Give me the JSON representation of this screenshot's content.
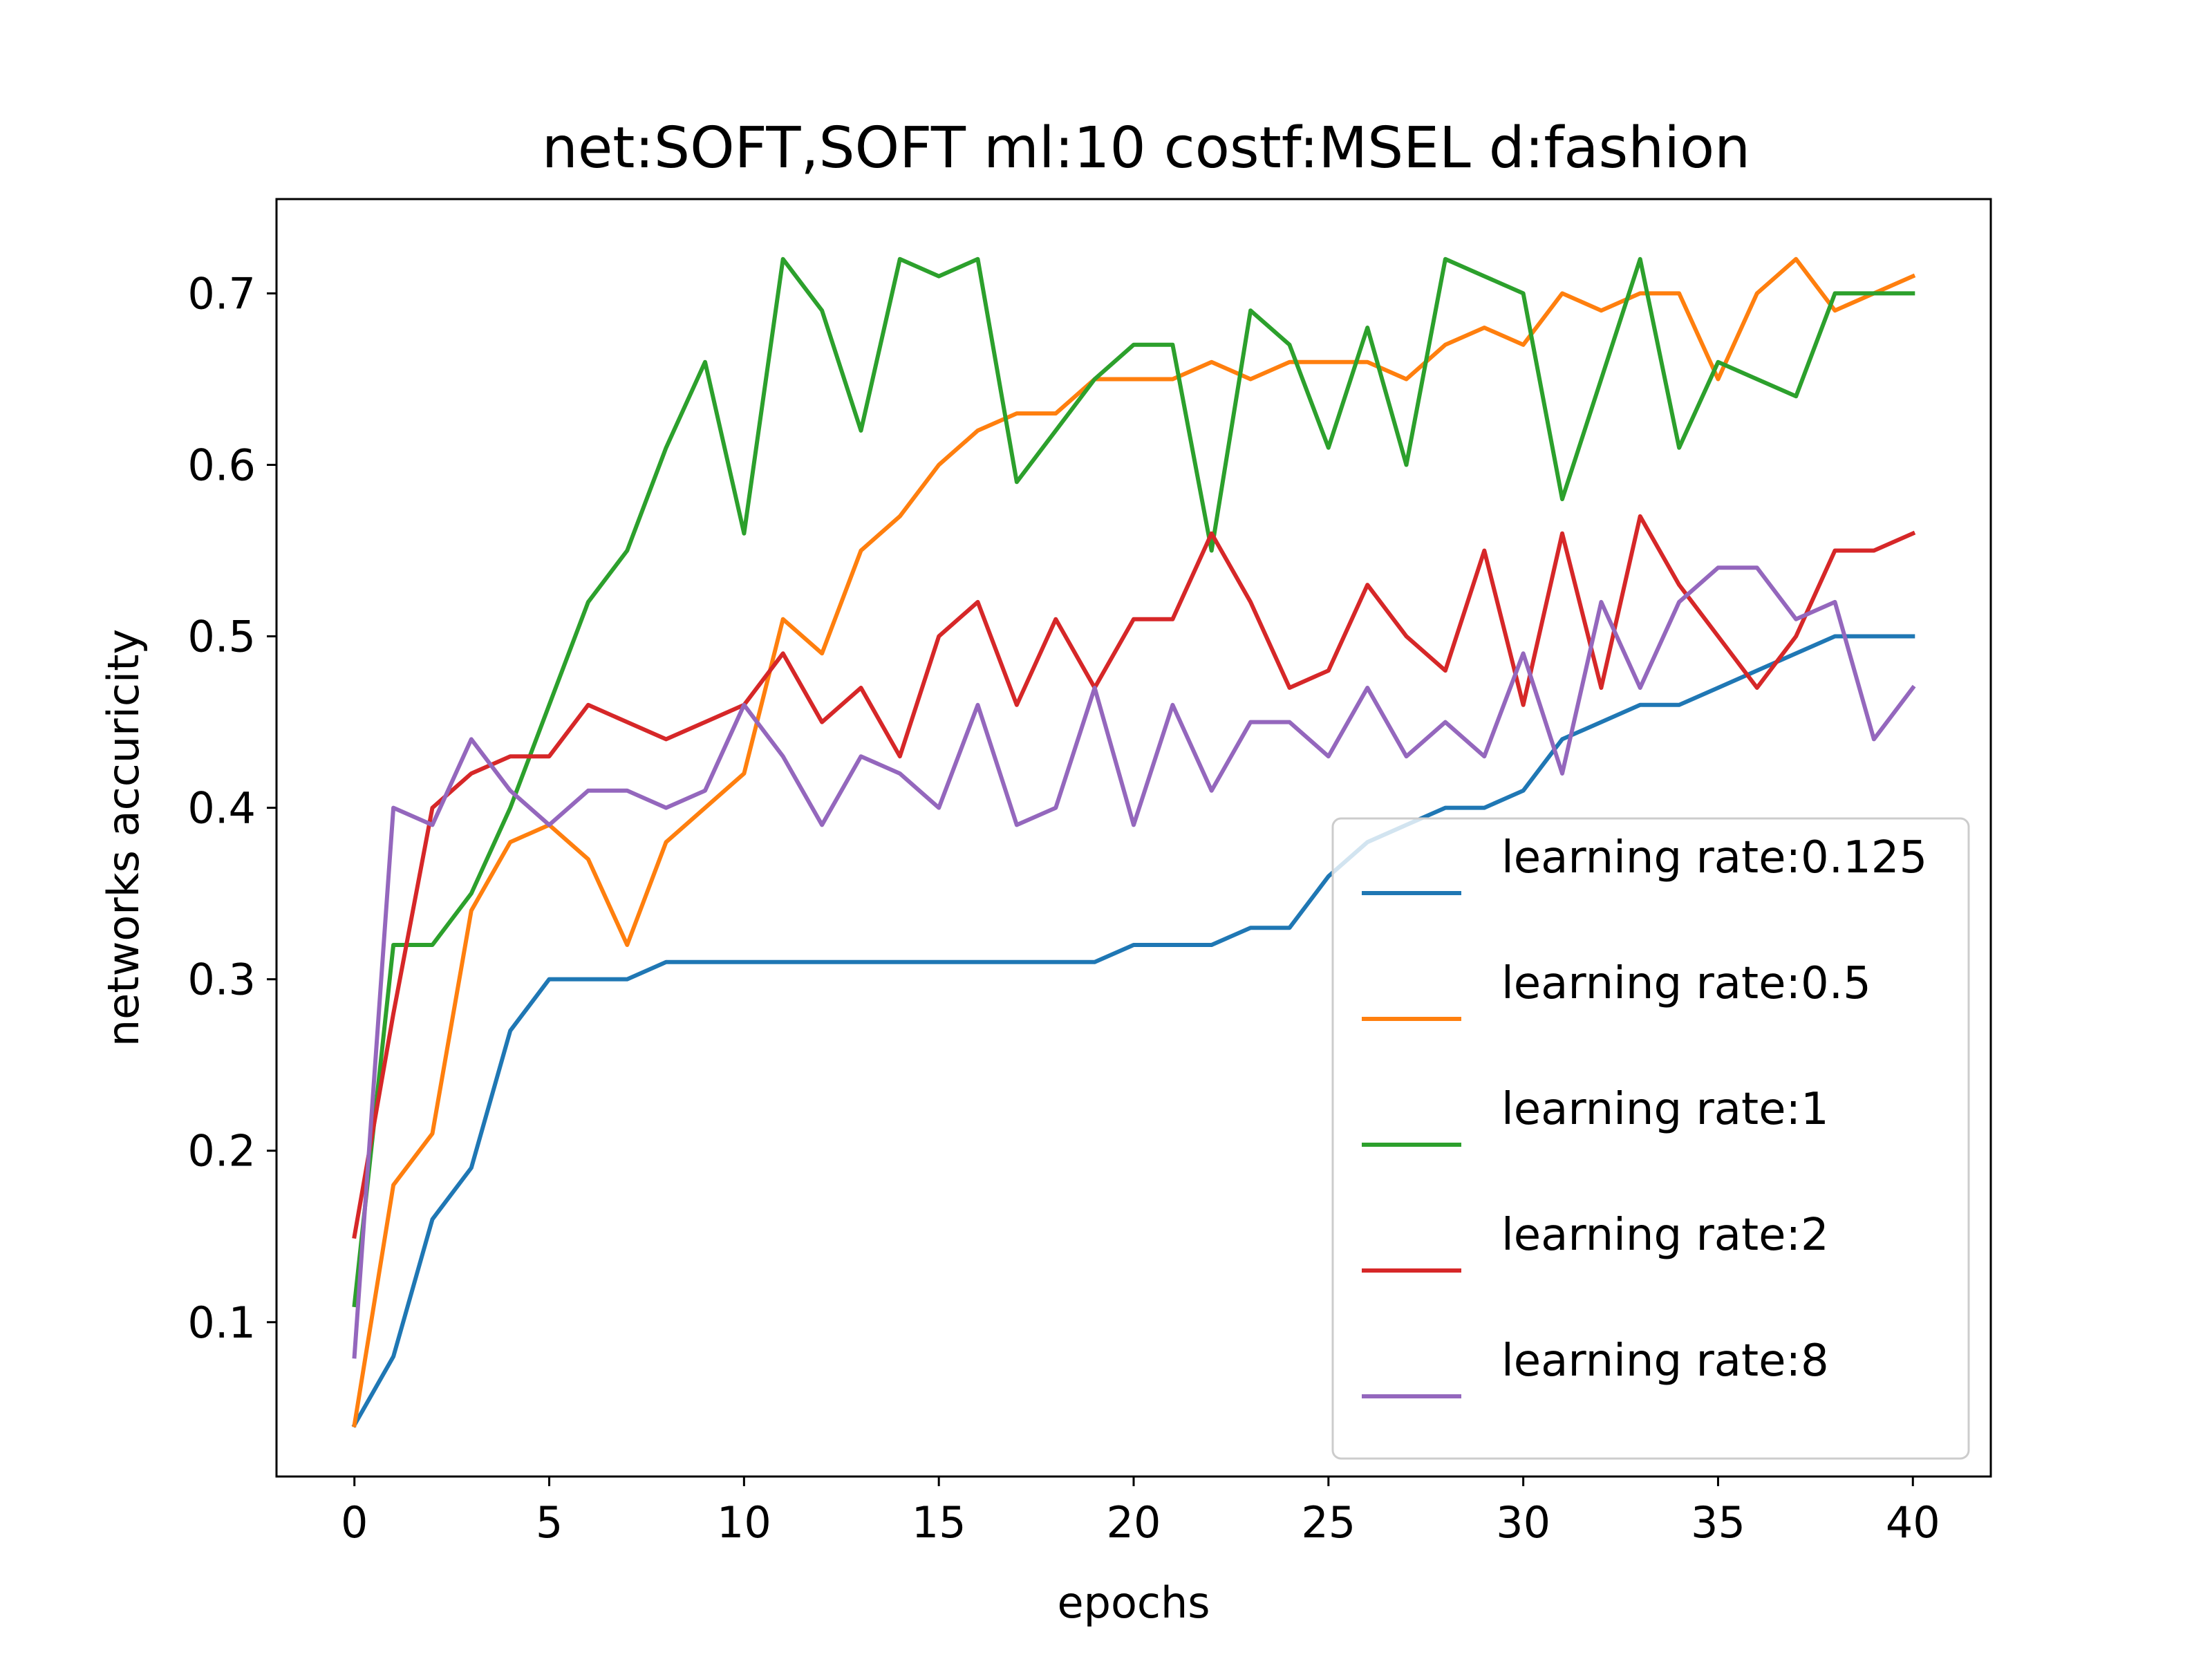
{
  "chart_data": {
    "type": "line",
    "title": "net:SOFT,SOFT ml:10 costf:MSEL d:fashion",
    "xlabel": "epochs",
    "ylabel": "networks accuricity",
    "xlim": [
      -2,
      42
    ],
    "ylim": [
      0.01,
      0.755
    ],
    "x_ticks": [
      0,
      5,
      10,
      15,
      20,
      25,
      30,
      35,
      40
    ],
    "y_ticks": [
      0.1,
      0.2,
      0.3,
      0.4,
      0.5,
      0.6,
      0.7
    ],
    "grid": false,
    "legend_placement": "lower-right",
    "x": [
      0,
      1,
      2,
      3,
      4,
      5,
      6,
      7,
      8,
      9,
      10,
      11,
      12,
      13,
      14,
      15,
      16,
      17,
      18,
      19,
      20,
      21,
      22,
      23,
      24,
      25,
      26,
      27,
      28,
      29,
      30,
      31,
      32,
      33,
      34,
      35,
      36,
      37,
      38,
      39,
      40
    ],
    "series": [
      {
        "name": "learning rate:0.125",
        "color": "#1f77b4",
        "values": [
          0.04,
          0.08,
          0.16,
          0.19,
          0.27,
          0.3,
          0.3,
          0.3,
          0.31,
          0.31,
          0.31,
          0.31,
          0.31,
          0.31,
          0.31,
          0.31,
          0.31,
          0.31,
          0.31,
          0.31,
          0.32,
          0.32,
          0.32,
          0.33,
          0.33,
          0.36,
          0.38,
          0.39,
          0.4,
          0.4,
          0.41,
          0.44,
          0.45,
          0.46,
          0.46,
          0.47,
          0.48,
          0.49,
          0.5,
          0.5,
          0.5
        ]
      },
      {
        "name": "learning rate:0.5",
        "color": "#ff7f0e",
        "values": [
          0.04,
          0.18,
          0.21,
          0.34,
          0.38,
          0.39,
          0.37,
          0.32,
          0.38,
          0.4,
          0.42,
          0.51,
          0.49,
          0.55,
          0.57,
          0.6,
          0.62,
          0.63,
          0.63,
          0.65,
          0.65,
          0.65,
          0.66,
          0.65,
          0.66,
          0.66,
          0.66,
          0.65,
          0.67,
          0.68,
          0.67,
          0.7,
          0.69,
          0.7,
          0.7,
          0.65,
          0.7,
          0.72,
          0.69,
          0.7,
          0.71
        ]
      },
      {
        "name": "learning rate:1",
        "color": "#2ca02c",
        "values": [
          0.11,
          0.32,
          0.32,
          0.35,
          0.4,
          0.46,
          0.52,
          0.55,
          0.61,
          0.66,
          0.56,
          0.72,
          0.69,
          0.62,
          0.72,
          0.71,
          0.72,
          0.59,
          0.62,
          0.65,
          0.67,
          0.67,
          0.55,
          0.69,
          0.67,
          0.61,
          0.68,
          0.6,
          0.72,
          0.71,
          0.7,
          0.58,
          0.65,
          0.72,
          0.61,
          0.66,
          0.65,
          0.64,
          0.7,
          0.7,
          0.7
        ]
      },
      {
        "name": "learning rate:2",
        "color": "#d62728",
        "values": [
          0.15,
          0.28,
          0.4,
          0.42,
          0.43,
          0.43,
          0.46,
          0.45,
          0.44,
          0.45,
          0.46,
          0.49,
          0.45,
          0.47,
          0.43,
          0.5,
          0.52,
          0.46,
          0.51,
          0.47,
          0.51,
          0.51,
          0.56,
          0.52,
          0.47,
          0.48,
          0.53,
          0.5,
          0.48,
          0.55,
          0.46,
          0.56,
          0.47,
          0.57,
          0.53,
          0.5,
          0.47,
          0.5,
          0.55,
          0.55,
          0.56
        ]
      },
      {
        "name": "learning rate:8",
        "color": "#9467bd",
        "values": [
          0.08,
          0.4,
          0.39,
          0.44,
          0.41,
          0.39,
          0.41,
          0.41,
          0.4,
          0.41,
          0.46,
          0.43,
          0.39,
          0.43,
          0.42,
          0.4,
          0.46,
          0.39,
          0.4,
          0.47,
          0.39,
          0.46,
          0.41,
          0.45,
          0.45,
          0.43,
          0.47,
          0.43,
          0.45,
          0.43,
          0.49,
          0.42,
          0.52,
          0.47,
          0.52,
          0.54,
          0.54,
          0.51,
          0.52,
          0.44,
          0.47
        ]
      }
    ]
  }
}
